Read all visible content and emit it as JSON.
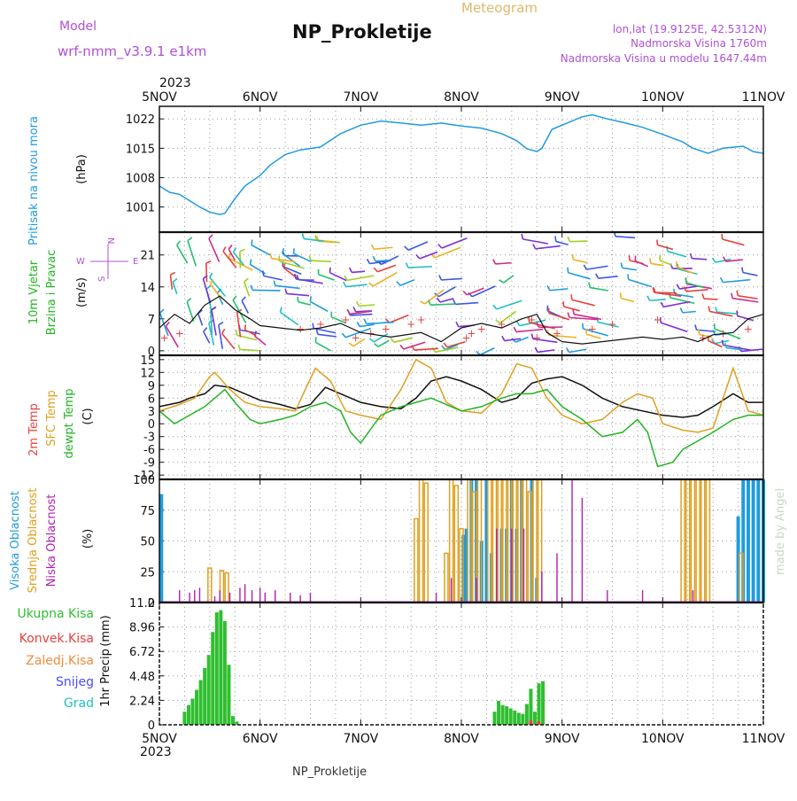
{
  "header": {
    "model_label": "Model",
    "model_name": "wrf-nmm_v3.9.1  e1km",
    "title": "NP_Prokletije",
    "meteogram_label": "Meteogram",
    "lonlat": "lon,lat (19.9125E, 42.5312N)",
    "altitude": "Nadmorska Visina 1760m",
    "model_altitude": "Nadmorska Visina u modelu 1647.44m",
    "footer_title": "NP_Prokletije",
    "credit": "made by Angel"
  },
  "colors": {
    "pressure": "#1f9be0",
    "temp2m": "#e8413c",
    "sfc": "#e0a020",
    "dewpt": "#22b522",
    "high_cloud": "#1f9be0",
    "mid_cloud": "#e0a020",
    "low_cloud": "#b020b0",
    "precip_total": "#2fbf2f",
    "precip_conv": "#e8413c",
    "purple_text": "#b050d8",
    "cyan_text": "#20c0c0"
  },
  "chart_data": [
    {
      "type": "line",
      "panel": "pressure",
      "y_title": "Pritisak na nivou mora",
      "ylabel": "(hPa)",
      "yticks": [
        1001,
        1008,
        1015,
        1022
      ],
      "ylim": [
        995,
        1025
      ],
      "x_range": [
        0,
        6
      ],
      "x_top_year": "2023",
      "x_tick_labels": [
        "5NOV",
        "6NOV",
        "7NOV",
        "8NOV",
        "9NOV",
        "10NOV",
        "11NOV"
      ],
      "x_bottom_year": "2023",
      "grid": true,
      "series": [
        {
          "key": "pressure",
          "x": [
            0,
            0.1,
            0.2,
            0.3,
            0.4,
            0.5,
            0.6,
            0.65,
            0.75,
            0.85,
            1.0,
            1.1,
            1.25,
            1.4,
            1.6,
            1.8,
            2.0,
            2.2,
            2.4,
            2.6,
            2.8,
            3.0,
            3.2,
            3.4,
            3.55,
            3.65,
            3.75,
            3.8,
            3.9,
            4.05,
            4.2,
            4.3,
            4.45,
            4.6,
            4.8,
            5.0,
            5.2,
            5.3,
            5.45,
            5.6,
            5.8,
            5.9,
            6.0
          ],
          "y": [
            1006,
            1004.5,
            1004,
            1002.5,
            1001,
            999.8,
            999.2,
            999.5,
            1003,
            1006,
            1008.5,
            1011,
            1013.5,
            1014.6,
            1015.3,
            1018.5,
            1020.5,
            1021.5,
            1021,
            1020.5,
            1021,
            1020.3,
            1019.8,
            1018.5,
            1016.8,
            1014.9,
            1014.2,
            1015,
            1019.5,
            1021,
            1022.5,
            1023,
            1022,
            1021.2,
            1020,
            1018.3,
            1016.5,
            1015,
            1013.8,
            1015,
            1015.5,
            1014.2,
            1013.8
          ]
        }
      ]
    },
    {
      "type": "line",
      "panel": "wind",
      "y_title_1": "10m Vjetar",
      "y_title_2": "Brzina i Pravac",
      "ylabel": "(m/s)",
      "yticks": [
        0,
        7,
        14,
        21
      ],
      "ylim": [
        -1,
        26
      ],
      "compass": {
        "n": "N",
        "s": "S",
        "e": "E",
        "w": "W"
      },
      "series": [
        {
          "key": "wind_speed",
          "x": [
            0,
            0.15,
            0.3,
            0.45,
            0.6,
            0.75,
            0.9,
            1.0,
            1.2,
            1.4,
            1.6,
            1.8,
            2.0,
            2.3,
            2.6,
            2.8,
            3.0,
            3.2,
            3.4,
            3.6,
            3.75,
            3.85,
            4.0,
            4.2,
            4.4,
            4.6,
            4.8,
            5.0,
            5.2,
            5.35,
            5.5,
            5.7,
            5.85,
            6.0
          ],
          "y": [
            5,
            8,
            6,
            10,
            12,
            9,
            7,
            5.5,
            5,
            4.5,
            5,
            6,
            4,
            3,
            4,
            2,
            5,
            6,
            5,
            7,
            8,
            4,
            2,
            1.5,
            2,
            2.5,
            3,
            2.5,
            3,
            2,
            3.5,
            4,
            7,
            8
          ]
        }
      ],
      "gust_markers_x": [
        0.05,
        0.2,
        1.4,
        1.6,
        1.85,
        1.95,
        2.1,
        2.25,
        2.5,
        2.6,
        3.05,
        3.1,
        3.2,
        3.4,
        3.7,
        3.75,
        3.95,
        4.3,
        4.5,
        4.95,
        5.4,
        5.6,
        5.85
      ]
    },
    {
      "type": "line",
      "panel": "temperature",
      "y_title_1": "2m Temp",
      "y_title_2": "SFC Temp",
      "y_title_3": "dewpt Temp",
      "ylabel": "(C)",
      "yticks": [
        -12,
        -9,
        -6,
        -3,
        0,
        3,
        6,
        9,
        12,
        15
      ],
      "ylim": [
        -13,
        16
      ],
      "series": [
        {
          "name": "2m Temp",
          "key": "t2m",
          "x": [
            0,
            0.2,
            0.3,
            0.45,
            0.55,
            0.7,
            0.85,
            1.0,
            1.2,
            1.35,
            1.5,
            1.65,
            1.8,
            2.0,
            2.2,
            2.4,
            2.55,
            2.7,
            2.85,
            3.0,
            3.2,
            3.4,
            3.55,
            3.7,
            3.85,
            4.0,
            4.2,
            4.4,
            4.6,
            4.8,
            5.0,
            5.2,
            5.35,
            5.5,
            5.7,
            5.85,
            6.0
          ],
          "y": [
            4,
            5,
            6,
            7,
            9,
            8.5,
            7,
            5.5,
            4.5,
            3.5,
            4.5,
            8.5,
            7,
            5,
            4,
            3.5,
            6,
            10,
            11,
            10,
            8,
            5,
            6,
            9.5,
            10.5,
            11,
            9,
            6,
            4,
            3,
            2,
            1.5,
            2,
            4,
            7,
            5,
            5
          ]
        },
        {
          "name": "SFC Temp",
          "key": "sfc",
          "x": [
            0,
            0.2,
            0.35,
            0.5,
            0.55,
            0.7,
            0.85,
            1.0,
            1.2,
            1.35,
            1.45,
            1.55,
            1.7,
            1.85,
            2.0,
            2.2,
            2.4,
            2.55,
            2.7,
            2.85,
            3.0,
            3.2,
            3.4,
            3.55,
            3.7,
            3.85,
            4.0,
            4.2,
            4.4,
            4.6,
            4.75,
            4.9,
            5.0,
            5.2,
            5.35,
            5.5,
            5.7,
            5.85,
            6.0
          ],
          "y": [
            3,
            4.5,
            6,
            11,
            12,
            8,
            5,
            4,
            3.5,
            3,
            8,
            13,
            10,
            3,
            2,
            1,
            8,
            15,
            13,
            5,
            3,
            2.5,
            7,
            14,
            13,
            6,
            2,
            0,
            1,
            5,
            7,
            6,
            0,
            -1.5,
            -2,
            -1,
            13,
            3,
            2
          ]
        },
        {
          "name": "dewpt Temp",
          "key": "dewpt",
          "x": [
            0,
            0.15,
            0.3,
            0.45,
            0.55,
            0.65,
            0.75,
            0.9,
            1.0,
            1.2,
            1.35,
            1.5,
            1.65,
            1.8,
            1.9,
            2.0,
            2.2,
            2.4,
            2.55,
            2.7,
            2.9,
            3.0,
            3.2,
            3.4,
            3.55,
            3.7,
            3.85,
            4.0,
            4.2,
            4.4,
            4.6,
            4.75,
            4.85,
            4.95,
            5.1,
            5.2,
            5.35,
            5.5,
            5.7,
            5.85,
            6.0
          ],
          "y": [
            3,
            0,
            2,
            4,
            6,
            8,
            5,
            1,
            0,
            1,
            2,
            4,
            5,
            3,
            -2,
            -4.5,
            2,
            4,
            5,
            6,
            4,
            3,
            4,
            6,
            7,
            7,
            8,
            4,
            1,
            -3,
            -2,
            1,
            -2,
            -10,
            -9,
            -6,
            -4,
            -2,
            1,
            2,
            2
          ]
        }
      ]
    },
    {
      "type": "bar",
      "panel": "clouds",
      "y_title_1": "Visoka Oblacnost",
      "y_title_2": "Srednja Oblacnost",
      "y_title_3": "Niska Oblacnost",
      "ylabel": "(%)",
      "yticks": [
        0,
        25,
        50,
        75,
        100
      ],
      "ylim": [
        0,
        100
      ],
      "series": [
        {
          "name": "Visoka Oblacnost",
          "key": "high",
          "x": [
            0.02,
            3.02,
            3.05,
            3.1,
            3.15,
            3.2,
            3.25,
            3.3,
            3.4,
            3.45,
            3.5,
            3.55,
            3.6,
            3.7,
            3.75,
            5.75,
            5.8,
            5.85,
            5.9,
            5.95,
            6.0
          ],
          "values": [
            88,
            55,
            60,
            100,
            100,
            50,
            100,
            40,
            60,
            60,
            100,
            60,
            100,
            100,
            20,
            70,
            100,
            100,
            100,
            100,
            100
          ]
        },
        {
          "name": "Srednja Oblacnost",
          "key": "mid",
          "x": [
            0.5,
            0.62,
            0.67,
            2.55,
            2.6,
            2.65,
            2.85,
            2.9,
            2.95,
            3.0,
            3.08,
            3.13,
            3.18,
            3.28,
            3.33,
            3.38,
            3.43,
            3.48,
            3.53,
            3.58,
            3.63,
            3.68,
            3.73,
            3.78,
            5.2,
            5.25,
            5.3,
            5.35,
            5.4,
            5.45,
            5.78
          ],
          "values": [
            28,
            26,
            24,
            68,
            100,
            97,
            40,
            100,
            95,
            60,
            100,
            90,
            100,
            100,
            100,
            100,
            100,
            100,
            100,
            100,
            100,
            90,
            100,
            100,
            100,
            100,
            100,
            100,
            100,
            100,
            40
          ]
        },
        {
          "name": "Niska Oblacnost",
          "key": "low",
          "x": [
            0.2,
            0.3,
            0.35,
            0.4,
            0.55,
            0.6,
            0.7,
            0.8,
            0.85,
            0.92,
            1.0,
            1.05,
            1.15,
            1.3,
            1.4,
            1.5,
            2.75,
            2.9,
            3.15,
            3.35,
            3.5,
            3.62,
            3.8,
            3.95,
            4.1,
            4.2,
            4.45,
            4.8,
            5.3
          ],
          "values": [
            10,
            8,
            10,
            12,
            5,
            10,
            8,
            12,
            15,
            10,
            12,
            8,
            10,
            8,
            6,
            8,
            8,
            20,
            20,
            60,
            60,
            60,
            25,
            40,
            100,
            85,
            10,
            10,
            10
          ]
        }
      ]
    },
    {
      "type": "bar",
      "panel": "precipitation",
      "y_title": "1hr Precip",
      "ylabel": "(mm)",
      "yticks": [
        0,
        2.24,
        4.48,
        6.72,
        8.96,
        11.2
      ],
      "ylim": [
        0,
        11.2
      ],
      "legend": [
        {
          "key": "total",
          "label": "Ukupna  Kisa",
          "color": "#2fbf2f"
        },
        {
          "key": "conv",
          "label": "Konvek.Kisa",
          "color": "#e8413c"
        },
        {
          "key": "frz",
          "label": "Zaledj.Kisa",
          "color": "#f08c3a"
        },
        {
          "key": "snow",
          "label": "Snijeg",
          "color": "#4b4bff"
        },
        {
          "key": "grad",
          "label": "Grad",
          "color": "#20c0c0"
        }
      ],
      "series": [
        {
          "name": "Ukupna  Kisa",
          "key": "total",
          "x": [
            0.25,
            0.29,
            0.33,
            0.37,
            0.41,
            0.45,
            0.49,
            0.53,
            0.57,
            0.61,
            0.65,
            0.69,
            0.73,
            0.77,
            3.33,
            3.37,
            3.41,
            3.45,
            3.49,
            3.53,
            3.57,
            3.61,
            3.65,
            3.69,
            3.73,
            3.77,
            3.81
          ],
          "values": [
            1.2,
            1.8,
            2.4,
            3.2,
            4.1,
            5.2,
            6.4,
            8.5,
            10.3,
            10.5,
            9.5,
            5.5,
            0.8,
            0.3,
            1.2,
            2.2,
            1.8,
            1.7,
            1.5,
            1.3,
            1.1,
            1.0,
            1.9,
            3.3,
            1.2,
            3.8,
            4.0
          ]
        },
        {
          "name": "Konvek.Kisa",
          "key": "conv",
          "x": [
            3.69,
            3.77
          ],
          "values": [
            0.4,
            0.3
          ]
        }
      ]
    }
  ]
}
